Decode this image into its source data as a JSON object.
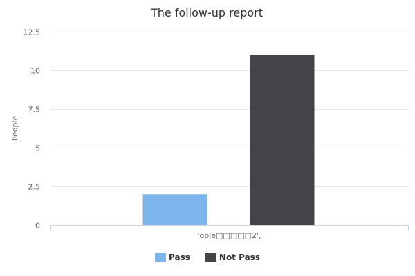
{
  "chart_data": {
    "type": "bar",
    "title": "The follow-up report",
    "xlabel": "",
    "ylabel": "People",
    "categories": [
      "'ople□□□□□2',"
    ],
    "series": [
      {
        "name": "Pass",
        "values": [
          2
        ],
        "color": "#7cb5ec"
      },
      {
        "name": "Not Pass",
        "values": [
          11
        ],
        "color": "#434348"
      }
    ],
    "ylim": [
      0,
      12.5
    ],
    "yticks": [
      "0",
      "2.5",
      "5",
      "7.5",
      "10",
      "12.5"
    ],
    "grid": true,
    "legend": "bottom-center"
  }
}
